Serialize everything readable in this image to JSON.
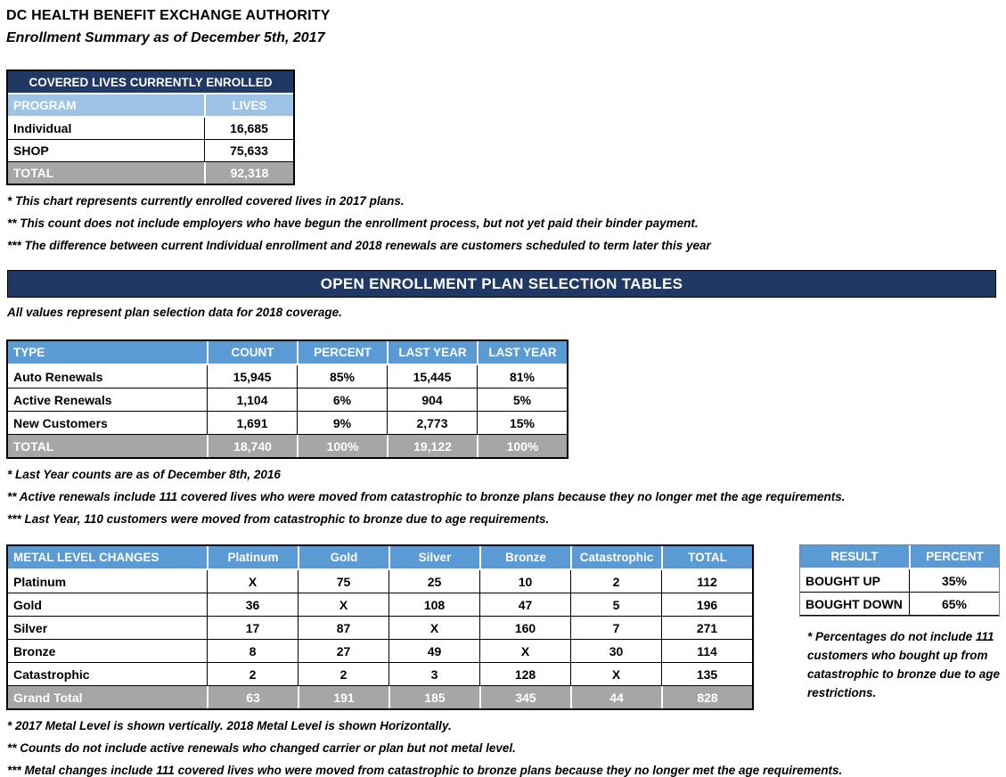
{
  "header": {
    "title": "DC HEALTH BENEFIT EXCHANGE AUTHORITY",
    "subtitle": "Enrollment Summary as of December 5th, 2017"
  },
  "colors": {
    "navy": "#1F3864",
    "header_blue": "#5B9BD5",
    "light_blue": "#9DC3E6",
    "total_gray": "#A6A6A6"
  },
  "covered_lives": {
    "title": "COVERED LIVES CURRENTLY ENROLLED",
    "columns": [
      "PROGRAM",
      "LIVES"
    ],
    "rows": [
      [
        "Individual",
        "16,685"
      ],
      [
        "SHOP",
        "75,633"
      ]
    ],
    "total": [
      "TOTAL",
      "92,318"
    ],
    "footnotes": [
      "* This chart represents currently enrolled covered lives in 2017 plans.",
      "** This count does not include employers who have begun the enrollment process, but not yet paid their binder payment.",
      "*** The difference between current Individual enrollment and 2018 renewals are customers scheduled to term later this year"
    ]
  },
  "open_enrollment": {
    "banner": "OPEN ENROLLMENT PLAN SELECTION TABLES",
    "caption": "All values represent plan selection data for 2018 coverage."
  },
  "plan_selection": {
    "columns": [
      "TYPE",
      "COUNT",
      "PERCENT",
      "LAST YEAR",
      "LAST YEAR"
    ],
    "rows": [
      [
        "Auto Renewals",
        "15,945",
        "85%",
        "15,445",
        "81%"
      ],
      [
        "Active Renewals",
        "1,104",
        "6%",
        "904",
        "5%"
      ],
      [
        "New Customers",
        "1,691",
        "9%",
        "2,773",
        "15%"
      ]
    ],
    "total": [
      "TOTAL",
      "18,740",
      "100%",
      "19,122",
      "100%"
    ],
    "footnotes": [
      "* Last Year counts are as of December 8th, 2016",
      "** Active renewals include 111 covered lives who were moved from catastrophic to bronze plans because they no longer met the age requirements.",
      "*** Last Year, 110 customers were moved from catastrophic to bronze due to age requirements."
    ]
  },
  "metal_changes": {
    "columns": [
      "METAL LEVEL CHANGES",
      "Platinum",
      "Gold",
      "Silver",
      "Bronze",
      "Catastrophic",
      "TOTAL"
    ],
    "rows": [
      [
        "Platinum",
        "X",
        "75",
        "25",
        "10",
        "2",
        "112"
      ],
      [
        "Gold",
        "36",
        "X",
        "108",
        "47",
        "5",
        "196"
      ],
      [
        "Silver",
        "17",
        "87",
        "X",
        "160",
        "7",
        "271"
      ],
      [
        "Bronze",
        "8",
        "27",
        "49",
        "X",
        "30",
        "114"
      ],
      [
        "Catastrophic",
        "2",
        "2",
        "3",
        "128",
        "X",
        "135"
      ]
    ],
    "total": [
      "Grand Total",
      "63",
      "191",
      "185",
      "345",
      "44",
      "828"
    ],
    "footnotes": [
      "* 2017 Metal Level is shown vertically. 2018 Metal Level is shown Horizontally.",
      "** Counts do not include active renewals who changed carrier or plan but not metal level.",
      "*** Metal changes include 111 covered lives who were moved from catastrophic to bronze plans because they no longer met the age requirements."
    ]
  },
  "result": {
    "columns": [
      "RESULT",
      "PERCENT"
    ],
    "rows": [
      [
        "BOUGHT UP",
        "35%"
      ],
      [
        "BOUGHT DOWN",
        "65%"
      ]
    ],
    "note": "* Percentages do not include 111 customers who bought up from catastrophic to bronze due to age restrictions."
  }
}
